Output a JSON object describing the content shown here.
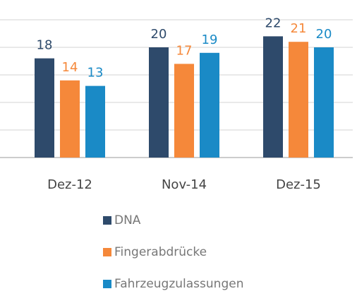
{
  "chart_data": {
    "type": "bar",
    "categories": [
      "Dez-12",
      "Nov-14",
      "Dez-15"
    ],
    "series": [
      {
        "name": "DNA",
        "color": "#2e4a6b",
        "values": [
          18,
          20,
          22
        ]
      },
      {
        "name": "Fingerabdrücke",
        "color": "#f5883a",
        "values": [
          14,
          17,
          21
        ]
      },
      {
        "name": "Fahrzeugzulassungen",
        "color": "#1a8ac6",
        "values": [
          13,
          19,
          20
        ]
      }
    ],
    "ylim": [
      0,
      25
    ],
    "yticks": [
      0,
      5,
      10,
      15,
      20,
      25
    ],
    "grid": true,
    "legend": "bottom"
  }
}
